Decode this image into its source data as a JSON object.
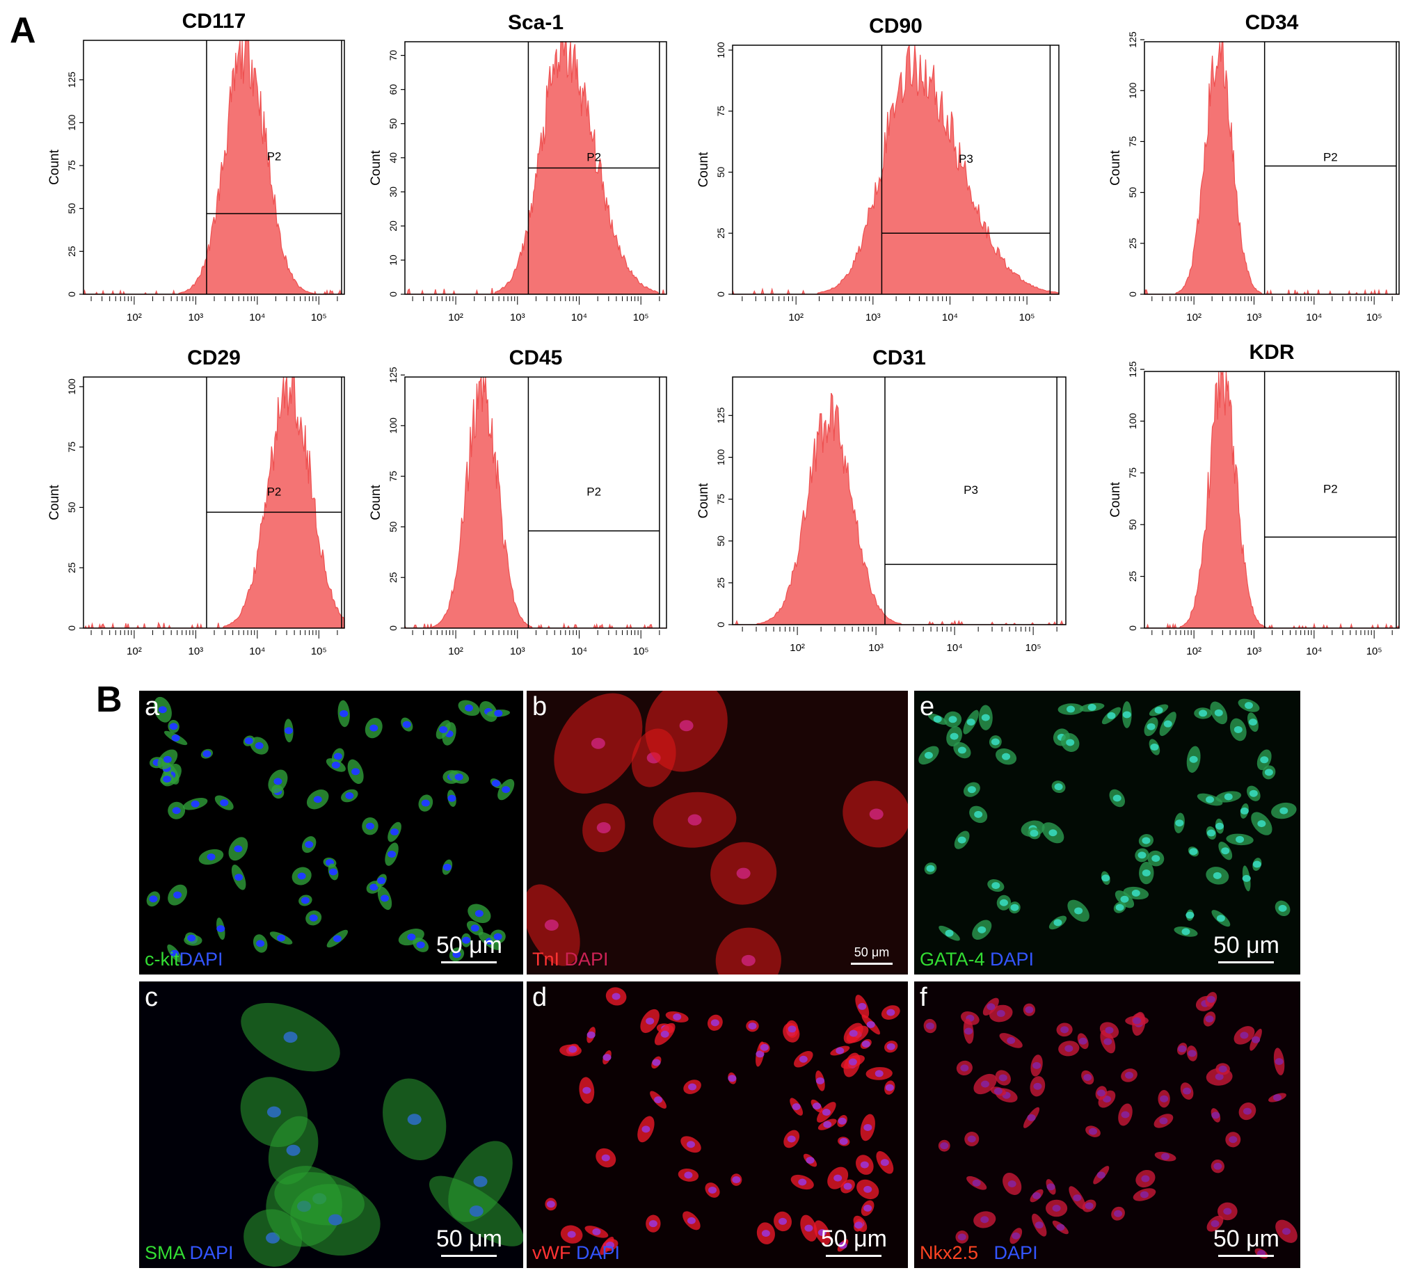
{
  "panels": {
    "A": "A",
    "B": "B"
  },
  "chart_data": [
    {
      "type": "histogram",
      "title": "CD117",
      "ylabel": "Count",
      "xscale": "log",
      "xlim": [
        15,
        260000
      ],
      "ylim": [
        0,
        148
      ],
      "yticks": [
        0,
        25,
        50,
        75,
        100,
        125
      ],
      "xticks": [
        {
          "v": 100,
          "label": "10²"
        },
        {
          "v": 1000,
          "label": "10³"
        },
        {
          "v": 10000,
          "label": "10⁴"
        },
        {
          "v": 100000,
          "label": "10⁵"
        }
      ],
      "gate": {
        "label": "P2",
        "x_from": 1500,
        "x_to": 250000,
        "y": 47
      },
      "distribution": {
        "peak_x": 6500,
        "peak_count": 143,
        "sigma_log10": 0.33,
        "skew": 1.0
      },
      "plot_color": "#ee5050"
    },
    {
      "type": "histogram",
      "title": "Sca-1",
      "ylabel": "Count",
      "xscale": "log",
      "xlim": [
        15,
        260000
      ],
      "ylim": [
        0,
        74
      ],
      "yticks": [
        0,
        10,
        20,
        30,
        40,
        50,
        60,
        70
      ],
      "xticks": [
        {
          "v": 100,
          "label": "10²"
        },
        {
          "v": 1000,
          "label": "10³"
        },
        {
          "v": 10000,
          "label": "10⁴"
        },
        {
          "v": 100000,
          "label": "10⁵"
        }
      ],
      "gate": {
        "label": "P2",
        "x_from": 1500,
        "x_to": 200000,
        "y": 37
      },
      "distribution": {
        "peak_x": 5500,
        "peak_count": 71,
        "sigma_log10": 0.36,
        "skew": 1.4
      },
      "plot_color": "#ee5050"
    },
    {
      "type": "histogram",
      "title": "CD90",
      "ylabel": "Count",
      "xscale": "log",
      "xlim": [
        15,
        260000
      ],
      "ylim": [
        0,
        102
      ],
      "yticks": [
        0,
        25,
        50,
        75,
        100
      ],
      "xticks": [
        {
          "v": 100,
          "label": "10²"
        },
        {
          "v": 1000,
          "label": "10³"
        },
        {
          "v": 10000,
          "label": "10⁴"
        },
        {
          "v": 100000,
          "label": "10⁵"
        }
      ],
      "gate": {
        "label": "P3",
        "x_from": 1300,
        "x_to": 200000,
        "y": 25
      },
      "distribution": {
        "peak_x": 3200,
        "peak_count": 94,
        "sigma_log10": 0.38,
        "skew": 1.6
      },
      "plot_color": "#ee5050"
    },
    {
      "type": "histogram",
      "title": "CD34",
      "ylabel": "Count",
      "xscale": "log",
      "xlim": [
        15,
        260000
      ],
      "ylim": [
        0,
        124
      ],
      "yticks": [
        0,
        25,
        50,
        75,
        100,
        125
      ],
      "xticks": [
        {
          "v": 100,
          "label": "10²"
        },
        {
          "v": 1000,
          "label": "10³"
        },
        {
          "v": 10000,
          "label": "10⁴"
        },
        {
          "v": 100000,
          "label": "10⁵"
        }
      ],
      "gate": {
        "label": "P2",
        "x_from": 1500,
        "x_to": 250000,
        "y": 63
      },
      "distribution": {
        "peak_x": 260,
        "peak_count": 121,
        "sigma_log10": 0.22,
        "skew": 1.0
      },
      "plot_color": "#ee5050"
    },
    {
      "type": "histogram",
      "title": "CD29",
      "ylabel": "Count",
      "xscale": "log",
      "xlim": [
        15,
        260000
      ],
      "ylim": [
        0,
        104
      ],
      "yticks": [
        0,
        25,
        50,
        75,
        100
      ],
      "xticks": [
        {
          "v": 100,
          "label": "10²"
        },
        {
          "v": 1000,
          "label": "10³"
        },
        {
          "v": 10000,
          "label": "10⁴"
        },
        {
          "v": 100000,
          "label": "10⁵"
        }
      ],
      "gate": {
        "label": "P2",
        "x_from": 1500,
        "x_to": 250000,
        "y": 48
      },
      "distribution": {
        "peak_x": 34000,
        "peak_count": 101,
        "sigma_log10": 0.34,
        "skew": 1.0
      },
      "plot_color": "#ee5050"
    },
    {
      "type": "histogram",
      "title": "CD45",
      "ylabel": "Count",
      "xscale": "log",
      "xlim": [
        15,
        260000
      ],
      "ylim": [
        0,
        124
      ],
      "yticks": [
        0,
        25,
        50,
        75,
        100,
        125
      ],
      "xticks": [
        {
          "v": 100,
          "label": "10²"
        },
        {
          "v": 1000,
          "label": "10³"
        },
        {
          "v": 10000,
          "label": "10⁴"
        },
        {
          "v": 100000,
          "label": "10⁵"
        }
      ],
      "gate": {
        "label": "P2",
        "x_from": 1500,
        "x_to": 200000,
        "y": 48
      },
      "distribution": {
        "peak_x": 270,
        "peak_count": 119,
        "sigma_log10": 0.25,
        "skew": 1.0
      },
      "plot_color": "#ee5050"
    },
    {
      "type": "histogram",
      "title": "CD31",
      "ylabel": "Count",
      "xscale": "log",
      "xlim": [
        15,
        260000
      ],
      "ylim": [
        0,
        148
      ],
      "yticks": [
        0,
        25,
        50,
        75,
        100,
        125
      ],
      "xticks": [
        {
          "v": 100,
          "label": "10²"
        },
        {
          "v": 1000,
          "label": "10³"
        },
        {
          "v": 10000,
          "label": "10⁴"
        },
        {
          "v": 100000,
          "label": "10⁵"
        }
      ],
      "gate": {
        "label": "P3",
        "x_from": 1300,
        "x_to": 200000,
        "y": 36
      },
      "distribution": {
        "peak_x": 260,
        "peak_count": 125,
        "sigma_log10": 0.28,
        "skew": 1.0
      },
      "plot_color": "#ee5050"
    },
    {
      "type": "histogram",
      "title": "KDR",
      "ylabel": "Count",
      "xscale": "log",
      "xlim": [
        15,
        260000
      ],
      "ylim": [
        0,
        124
      ],
      "yticks": [
        0,
        25,
        50,
        75,
        100,
        125
      ],
      "xticks": [
        {
          "v": 100,
          "label": "10²"
        },
        {
          "v": 1000,
          "label": "10³"
        },
        {
          "v": 10000,
          "label": "10⁴"
        },
        {
          "v": 100000,
          "label": "10⁵"
        }
      ],
      "gate": {
        "label": "P2",
        "x_from": 1500,
        "x_to": 250000,
        "y": 44
      },
      "distribution": {
        "peak_x": 300,
        "peak_count": 121,
        "sigma_log10": 0.22,
        "skew": 1.0
      },
      "plot_color": "#ee5050"
    }
  ],
  "micrographs": [
    {
      "letter": "a",
      "stain_parts": [
        {
          "text": "c-kit",
          "color": "#33dd33"
        },
        {
          "text": "DAPI",
          "color": "#3355ff"
        }
      ],
      "scale_label": "50 μm",
      "background": "#000000",
      "cell_color": "#2f9f3a",
      "nucleus_color": "#1e3cff"
    },
    {
      "letter": "b",
      "stain_parts": [
        {
          "text": "TnI",
          "color": "#ff3333"
        },
        {
          "text": " DAPI",
          "color": "#cc2255"
        }
      ],
      "scale_label": "50 μm",
      "background": "#1a0505",
      "cell_color": "#e01818",
      "nucleus_color": "#c02068"
    },
    {
      "letter": "e",
      "stain_parts": [
        {
          "text": "GATA-4",
          "color": "#33dd33"
        },
        {
          "text": " DAPI",
          "color": "#3355ff"
        }
      ],
      "scale_label": "50 μm",
      "background": "#020a04",
      "cell_color": "#2a9a50",
      "nucleus_color": "#35d0b0"
    },
    {
      "letter": "c",
      "stain_parts": [
        {
          "text": "SMA",
          "color": "#33dd33"
        },
        {
          "text": " DAPI",
          "color": "#3355ff"
        }
      ],
      "scale_label": "50 μm",
      "background": "#000008",
      "cell_color": "#2aa030",
      "nucleus_color": "#2a6ab0"
    },
    {
      "letter": "d",
      "stain_parts": [
        {
          "text": "vWF",
          "color": "#ff3333"
        },
        {
          "text": " DAPI",
          "color": "#3355ff"
        }
      ],
      "scale_label": "50 μm",
      "background": "#0a0002",
      "cell_color": "#e81828",
      "nucleus_color": "#a030c0"
    },
    {
      "letter": "f",
      "stain_parts": [
        {
          "text": "Nkx2.5",
          "color": "#ff4422"
        },
        {
          "text": "   DAPI",
          "color": "#3355ff"
        }
      ],
      "scale_label": "50 μm",
      "background": "#0a0004",
      "cell_color": "#c81838",
      "nucleus_color": "#8a2090"
    }
  ]
}
